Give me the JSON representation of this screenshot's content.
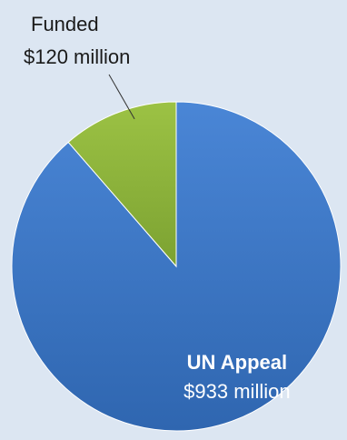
{
  "chart_data": {
    "type": "pie",
    "title": "",
    "unit": "$ million",
    "slices": [
      {
        "name": "UN Appeal",
        "value": 933,
        "value_label": "$933 million",
        "color": "#3b78c9",
        "label_position": "inside"
      },
      {
        "name": "Funded",
        "value": 120,
        "value_label": "$120 million",
        "color": "#8fb63a",
        "label_position": "outside-leader"
      }
    ],
    "background_color": "#dce6f2",
    "legend": "none"
  }
}
